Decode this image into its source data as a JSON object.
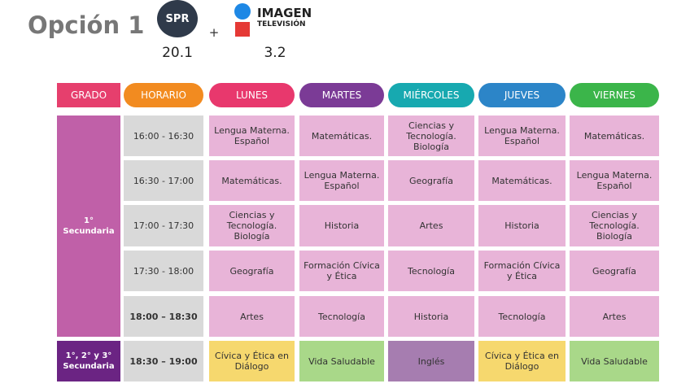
{
  "header": {
    "title": "Opción 1",
    "spr": {
      "logo": "SPR",
      "channel": "20.1"
    },
    "plus": "+",
    "imagen": {
      "name": "IMAGEN",
      "sub": "TELEVISIÓN",
      "channel": "3.2"
    }
  },
  "table": {
    "columns": [
      "GRADO",
      "HORARIO",
      "LUNES",
      "MARTES",
      "MIÉRCOLES",
      "JUEVES",
      "VIERNES"
    ],
    "grades": [
      "1° Secundaria",
      "1°, 2° y 3° Secundaria"
    ],
    "rows": [
      {
        "time": "16:00 - 16:30",
        "cells": [
          "Lengua Materna. Español",
          "Matemáticas.",
          "Ciencias y Tecnología. Biología",
          "Lengua Materna. Español",
          "Matemáticas."
        ]
      },
      {
        "time": "16:30 - 17:00",
        "cells": [
          "Matemáticas.",
          "Lengua Materna. Español",
          "Geografía",
          "Matemáticas.",
          "Lengua Materna. Español"
        ]
      },
      {
        "time": "17:00 - 17:30",
        "cells": [
          "Ciencias y Tecnología. Biología",
          "Historia",
          "Artes",
          "Historia",
          "Ciencias y Tecnología. Biología"
        ]
      },
      {
        "time": "17:30 - 18:00",
        "cells": [
          "Geografía",
          "Formación Cívica y Ética",
          "Tecnología",
          "Formación Cívica y Ética",
          "Geografía"
        ]
      },
      {
        "time": "18:00 – 18:30",
        "cells": [
          "Artes",
          "Tecnología",
          "Historia",
          "Tecnología",
          "Artes"
        ]
      },
      {
        "time": "18:30 – 19:00",
        "cells": [
          "Cívica y Ética en Diálogo",
          "Vida Saludable",
          "Inglés",
          "Cívica y Ética en Diálogo",
          "Vida Saludable"
        ]
      }
    ]
  }
}
